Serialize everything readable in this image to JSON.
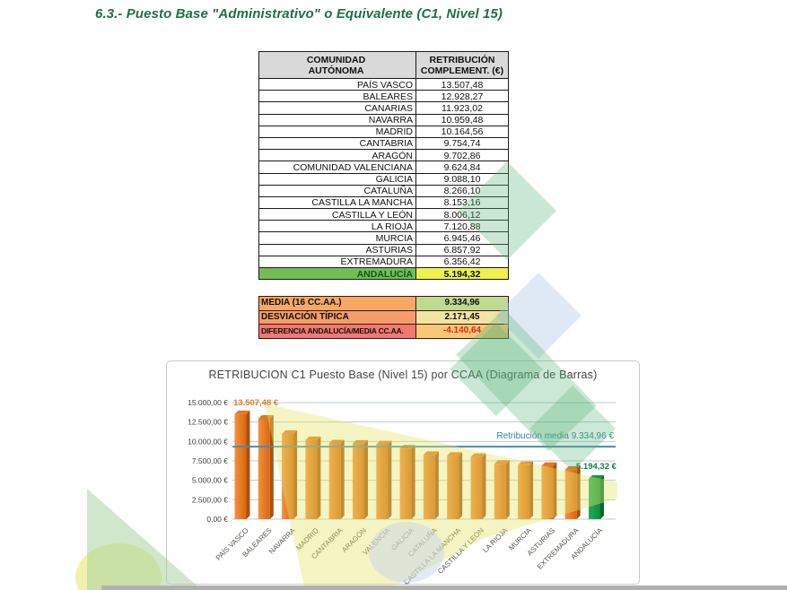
{
  "page": {
    "title": "6.3.- Puesto Base \"Administrativo\" o Equivalente (C1, Nivel 15)"
  },
  "table": {
    "headers": [
      "COMUNIDAD\nAUTÓNOMA",
      "RETRIBUCIÓN\nCOMPLEMENT. (€)"
    ],
    "rows": [
      {
        "name": "PAÍS VASCO",
        "value": "13.507,48",
        "highlight": false
      },
      {
        "name": "BALEARES",
        "value": "12.928,27",
        "highlight": false
      },
      {
        "name": "CANARIAS",
        "value": "11.923,02",
        "highlight": false
      },
      {
        "name": "NAVARRA",
        "value": "10.959,48",
        "highlight": false
      },
      {
        "name": "MADRID",
        "value": "10.164,56",
        "highlight": false
      },
      {
        "name": "CANTABRIA",
        "value": "9.754,74",
        "highlight": false
      },
      {
        "name": "ARAGÓN",
        "value": "9.702,86",
        "highlight": false
      },
      {
        "name": "COMUNIDAD VALENCIANA",
        "value": "9.624,84",
        "highlight": false
      },
      {
        "name": "GALICIA",
        "value": "9.088,10",
        "highlight": false
      },
      {
        "name": "CATALUÑA",
        "value": "8.266,10",
        "highlight": false
      },
      {
        "name": "CASTILLA LA MANCHA",
        "value": "8.153,16",
        "highlight": false
      },
      {
        "name": "CASTILLA Y LEÓN",
        "value": "8.006,12",
        "highlight": false
      },
      {
        "name": "LA RIOJA",
        "value": "7.120,88",
        "highlight": false
      },
      {
        "name": "MURCIA",
        "value": "6.945,46",
        "highlight": false
      },
      {
        "name": "ASTURIAS",
        "value": "6.857,92",
        "highlight": false
      },
      {
        "name": "EXTREMADURA",
        "value": "6.356,42",
        "highlight": false
      },
      {
        "name": "ANDALUCÍA",
        "value": "5.194,32",
        "highlight": true
      }
    ]
  },
  "summary": {
    "rows": [
      {
        "type": "media",
        "label": "MEDIA (16 CC.AA.)",
        "value": "9.334,96"
      },
      {
        "type": "desviacion",
        "label": "DESVIACIÓN TÍPICA",
        "value": "2.171,45"
      },
      {
        "type": "diferencia",
        "label": "DIFERENCIA ANDALUCÍA/MEDIA CC.AA.",
        "value": "-4.140,64"
      }
    ]
  },
  "colors": {
    "title_green": "#1d7045",
    "header_bg": "#d9d9d9",
    "andalucia_name_bg": "#72be55",
    "andalucia_name_text": "#14541a",
    "andalucia_value_bg": "#edf14e",
    "media_label_bg": "#f6a964",
    "media_value_bg": "#bcda92",
    "desviacion_label_bg": "#f49d6b",
    "desviacion_value_bg": "#f2e4a4",
    "diferencia_label_bg": "#ef7a70",
    "diferencia_value_bg": "#f6c878",
    "negative_text": "#d92b1d"
  },
  "chart_data": {
    "type": "bar",
    "title": "RETRIBUCION C1  Puesto Base (Nivel 15) por CCAA (Diagrama de Barras)",
    "xlabel": "",
    "ylabel": "",
    "categories": [
      "PAÍS VASCO",
      "BALEARES",
      "NAVARRA",
      "MADRID",
      "CANTABRIA",
      "ARAGÓN",
      "VALENCIA",
      "GALICIA",
      "CATALUÑA",
      "CASTILLA LA MANCHA",
      "CASTILLA Y LEÓN",
      "LA RIOJA",
      "MURCIA",
      "ASTURIAS",
      "EXTREMADURA",
      "ANDALUCÍA"
    ],
    "values": [
      13507.48,
      12928.27,
      10959.48,
      10164.56,
      9754.74,
      9702.86,
      9624.84,
      9088.1,
      8266.1,
      8153.16,
      8006.12,
      7120.88,
      6945.46,
      6857.92,
      6356.42,
      5194.32
    ],
    "ylim": [
      0,
      15000
    ],
    "ytick_step": 2500,
    "ytick_labels": [
      "0,00 €",
      "2.500,00 €",
      "5.000,00 €",
      "7.500,00 €",
      "10.000,00 €",
      "12.500,00 €",
      "15.000,00 €"
    ],
    "grid": true,
    "legend": false,
    "media_value": 9334.96,
    "highlight_index": 15,
    "annotations": {
      "first_bar": "13.507,48 €",
      "last_bar": "5.194,32 €",
      "media_line": "Retribución media 9.334,96 €"
    },
    "bar_colors": {
      "front1": "#f5913a",
      "front2": "#d96512",
      "side": "#a5530f",
      "top": "#e5771c"
    },
    "highlight_colors": {
      "front1": "#23ad55",
      "front2": "#0f8a40",
      "side": "#0b6930",
      "top": "#179548"
    },
    "annotation_colors": {
      "first_bar": "#e07c1e",
      "last_bar": "#1d7a43",
      "media": "#2e8498"
    },
    "media_line_color": "#4e8aa8",
    "grid_color": "#bcc9d4"
  }
}
